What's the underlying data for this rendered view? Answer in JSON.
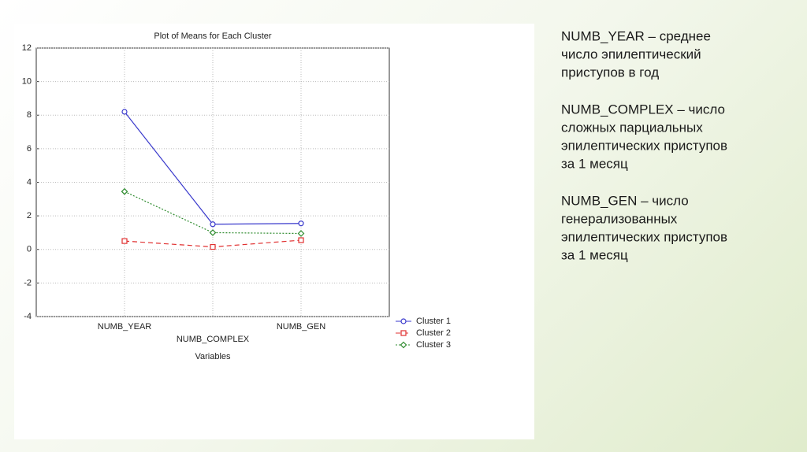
{
  "chart_data": {
    "type": "line",
    "title": "Plot of Means for Each Cluster",
    "x_label": "Variables",
    "categories": [
      "NUMB_YEAR",
      "NUMB_COMPLEX",
      "NUMB_GEN"
    ],
    "series": [
      {
        "name": "Cluster 1",
        "color": "#3a3acc",
        "line_style": "solid",
        "marker": "circle",
        "values": [
          8.2,
          1.5,
          1.55
        ]
      },
      {
        "name": "Cluster 2",
        "color": "#e03030",
        "line_style": "dashed",
        "marker": "square",
        "values": [
          0.5,
          0.15,
          0.55
        ]
      },
      {
        "name": "Cluster 3",
        "color": "#2e8b2e",
        "line_style": "dotted",
        "marker": "diamond",
        "values": [
          3.45,
          1.0,
          0.95
        ]
      }
    ],
    "ylim": [
      -4,
      12
    ],
    "yticks": [
      -4,
      -2,
      0,
      2,
      4,
      6,
      8,
      10,
      12
    ],
    "grid": true,
    "legend": "right"
  },
  "notes": [
    [
      "NUMB_YEAR – среднее",
      "число эпилептический",
      "приступов в год"
    ],
    [
      "NUMB_COMPLEX – число",
      "сложных парциальных",
      "эпилептических приступов",
      "за 1 месяц"
    ],
    [
      "NUMB_GEN – число",
      "генерализованных",
      "эпилептических приступов",
      "за 1 месяц"
    ]
  ]
}
